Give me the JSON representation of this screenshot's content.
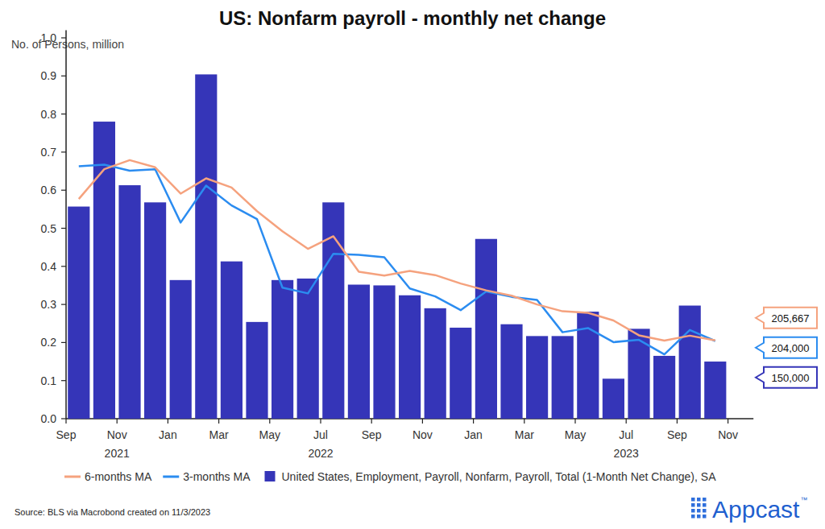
{
  "chart_data": {
    "type": "bar",
    "title": "US: Nonfarm payroll - monthly net change",
    "y_label": "No. of Persons, million",
    "source": "Source: BLS via Macrobond created on 11/3/2023",
    "brand": "Appcast",
    "brand_mark": "™",
    "categories": [
      "Sep",
      null,
      "Nov\n2021",
      null,
      "Jan",
      null,
      "Mar",
      null,
      "May",
      null,
      "Jul\n2022",
      null,
      "Sep",
      null,
      "Nov",
      null,
      "Jan",
      null,
      "Mar",
      null,
      "May",
      null,
      "Jul\n2023",
      null,
      "Sep",
      null,
      "Nov"
    ],
    "series": [
      {
        "name": "6-months MA",
        "type": "line",
        "color": "#f5a27e",
        "values": [
          0.577,
          0.655,
          0.679,
          0.66,
          0.591,
          0.631,
          0.607,
          0.545,
          0.492,
          0.446,
          0.479,
          0.386,
          0.376,
          0.388,
          0.377,
          0.355,
          0.337,
          0.323,
          0.3,
          0.282,
          0.278,
          0.258,
          0.219,
          0.205,
          0.218,
          0.205667,
          null
        ],
        "end_label": "205,667"
      },
      {
        "name": "3-months MA",
        "type": "line",
        "color": "#2b8cf0",
        "values": [
          0.663,
          0.667,
          0.651,
          0.655,
          0.515,
          0.612,
          0.56,
          0.524,
          0.344,
          0.329,
          0.433,
          0.43,
          0.424,
          0.342,
          0.321,
          0.285,
          0.334,
          0.32,
          0.312,
          0.227,
          0.238,
          0.201,
          0.207,
          0.169,
          0.233,
          0.204,
          null
        ],
        "end_label": "204,000"
      },
      {
        "name": "United States, Employment, Payroll, Nonfarm, Payroll, Total (1-Month Net Change), SA",
        "type": "bar",
        "color": "#3535b8",
        "values": [
          0.557,
          0.78,
          0.613,
          0.568,
          0.364,
          0.904,
          0.413,
          0.254,
          0.364,
          0.368,
          0.568,
          0.352,
          0.35,
          0.324,
          0.29,
          0.239,
          0.472,
          0.248,
          0.217,
          0.217,
          0.281,
          0.105,
          0.236,
          0.165,
          0.297,
          0.15,
          null
        ],
        "end_label": "150,000"
      }
    ],
    "ylim": [
      0,
      1.02
    ],
    "yticks": [
      {
        "value": 0,
        "label": "0.0"
      },
      0.1,
      0.2,
      0.3,
      0.4,
      0.5,
      0.6,
      0.7,
      0.8,
      0.9,
      {
        "value": 1,
        "label": "1.0"
      }
    ],
    "grid": false,
    "legend": "bottom"
  }
}
